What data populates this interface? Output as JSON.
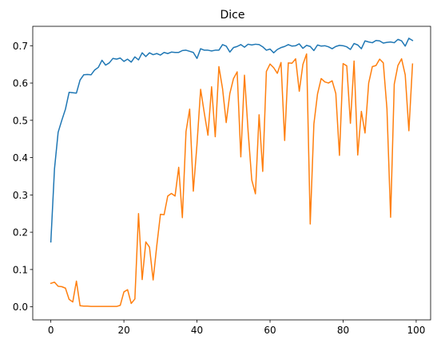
{
  "chart_data": {
    "type": "line",
    "title": "Dice",
    "xlabel": "",
    "ylabel": "",
    "xlim": [
      -4.95,
      103.95
    ],
    "ylim": [
      -0.035,
      0.752
    ],
    "xticks": [
      0,
      20,
      40,
      60,
      80,
      100
    ],
    "yticks": [
      0.0,
      0.1,
      0.2,
      0.3,
      0.4,
      0.5,
      0.6,
      0.7
    ],
    "ytick_labels": [
      "0.0",
      "0.1",
      "0.2",
      "0.3",
      "0.4",
      "0.5",
      "0.6",
      "0.7"
    ],
    "grid": false,
    "legend": false,
    "x": [
      0,
      1,
      2,
      3,
      4,
      5,
      6,
      7,
      8,
      9,
      10,
      11,
      12,
      13,
      14,
      15,
      16,
      17,
      18,
      19,
      20,
      21,
      22,
      23,
      24,
      25,
      26,
      27,
      28,
      29,
      30,
      31,
      32,
      33,
      34,
      35,
      36,
      37,
      38,
      39,
      40,
      41,
      42,
      43,
      44,
      45,
      46,
      47,
      48,
      49,
      50,
      51,
      52,
      53,
      54,
      55,
      56,
      57,
      58,
      59,
      60,
      61,
      62,
      63,
      64,
      65,
      66,
      67,
      68,
      69,
      70,
      71,
      72,
      73,
      74,
      75,
      76,
      77,
      78,
      79,
      80,
      81,
      82,
      83,
      84,
      85,
      86,
      87,
      88,
      89,
      90,
      91,
      92,
      93,
      94,
      95,
      96,
      97,
      98,
      99
    ],
    "series": [
      {
        "color": "#1f77b4",
        "values": [
          0.174,
          0.37,
          0.468,
          0.5,
          0.53,
          0.575,
          0.574,
          0.573,
          0.608,
          0.622,
          0.623,
          0.622,
          0.635,
          0.642,
          0.661,
          0.648,
          0.654,
          0.666,
          0.664,
          0.667,
          0.658,
          0.664,
          0.656,
          0.67,
          0.662,
          0.681,
          0.671,
          0.681,
          0.676,
          0.679,
          0.675,
          0.682,
          0.679,
          0.683,
          0.682,
          0.682,
          0.687,
          0.688,
          0.685,
          0.682,
          0.666,
          0.692,
          0.688,
          0.688,
          0.686,
          0.688,
          0.688,
          0.703,
          0.699,
          0.683,
          0.695,
          0.698,
          0.703,
          0.696,
          0.704,
          0.702,
          0.704,
          0.703,
          0.697,
          0.688,
          0.691,
          0.681,
          0.69,
          0.695,
          0.698,
          0.703,
          0.699,
          0.7,
          0.705,
          0.693,
          0.701,
          0.698,
          0.687,
          0.702,
          0.699,
          0.7,
          0.697,
          0.692,
          0.698,
          0.701,
          0.7,
          0.697,
          0.69,
          0.706,
          0.702,
          0.692,
          0.713,
          0.71,
          0.708,
          0.714,
          0.713,
          0.707,
          0.709,
          0.71,
          0.708,
          0.717,
          0.713,
          0.699,
          0.72,
          0.714
        ]
      },
      {
        "color": "#ff7f0e",
        "values": [
          0.063,
          0.066,
          0.055,
          0.054,
          0.05,
          0.02,
          0.013,
          0.069,
          0.003,
          0.002,
          0.002,
          0.001,
          0.001,
          0.001,
          0.001,
          0.001,
          0.001,
          0.001,
          0.001,
          0.004,
          0.04,
          0.046,
          0.009,
          0.021,
          0.25,
          0.073,
          0.174,
          0.16,
          0.072,
          0.164,
          0.248,
          0.247,
          0.297,
          0.304,
          0.297,
          0.374,
          0.239,
          0.47,
          0.53,
          0.31,
          0.435,
          0.583,
          0.52,
          0.46,
          0.59,
          0.456,
          0.644,
          0.585,
          0.494,
          0.572,
          0.612,
          0.63,
          0.402,
          0.621,
          0.47,
          0.34,
          0.303,
          0.515,
          0.363,
          0.631,
          0.651,
          0.641,
          0.626,
          0.655,
          0.446,
          0.654,
          0.653,
          0.665,
          0.578,
          0.65,
          0.678,
          0.222,
          0.49,
          0.571,
          0.612,
          0.603,
          0.6,
          0.606,
          0.572,
          0.406,
          0.652,
          0.646,
          0.492,
          0.659,
          0.407,
          0.524,
          0.466,
          0.6,
          0.644,
          0.647,
          0.664,
          0.654,
          0.531,
          0.24,
          0.597,
          0.647,
          0.665,
          0.622,
          0.472,
          0.651
        ]
      }
    ]
  }
}
